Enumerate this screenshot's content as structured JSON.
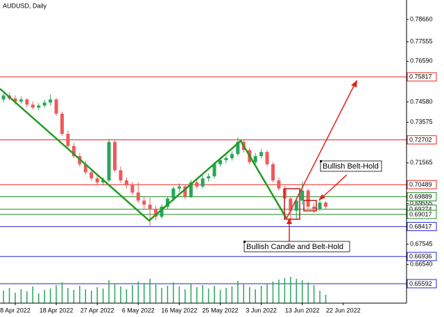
{
  "chart_data": {
    "type": "candlestick",
    "title": "AUDUSD, Daily",
    "up_color": "#26a65b",
    "down_color": "#ef5a5a",
    "ohlc": [
      [
        0.747,
        0.75,
        0.7455,
        0.749
      ],
      [
        0.749,
        0.7505,
        0.7465,
        0.7475
      ],
      [
        0.7475,
        0.749,
        0.7445,
        0.746
      ],
      [
        0.746,
        0.7485,
        0.745,
        0.747
      ],
      [
        0.747,
        0.7478,
        0.743,
        0.7445
      ],
      [
        0.7445,
        0.746,
        0.742,
        0.743
      ],
      [
        0.743,
        0.7452,
        0.7418,
        0.744
      ],
      [
        0.744,
        0.7468,
        0.7428,
        0.7455
      ],
      [
        0.7455,
        0.7495,
        0.744,
        0.747
      ],
      [
        0.747,
        0.7478,
        0.739,
        0.74
      ],
      [
        0.74,
        0.741,
        0.729,
        0.73
      ],
      [
        0.73,
        0.7318,
        0.7228,
        0.724
      ],
      [
        0.724,
        0.7255,
        0.7178,
        0.719
      ],
      [
        0.719,
        0.7205,
        0.7138,
        0.715
      ],
      [
        0.715,
        0.7168,
        0.7098,
        0.711
      ],
      [
        0.711,
        0.7125,
        0.7068,
        0.708
      ],
      [
        0.708,
        0.7098,
        0.7048,
        0.706
      ],
      [
        0.706,
        0.7085,
        0.7045,
        0.707
      ],
      [
        0.707,
        0.7275,
        0.7062,
        0.726
      ],
      [
        0.726,
        0.727,
        0.711,
        0.712
      ],
      [
        0.712,
        0.7138,
        0.7058,
        0.707
      ],
      [
        0.707,
        0.7085,
        0.703,
        0.705
      ],
      [
        0.705,
        0.7062,
        0.6995,
        0.701
      ],
      [
        0.701,
        0.706,
        0.6958,
        0.697
      ],
      [
        0.697,
        0.699,
        0.693,
        0.695
      ],
      [
        0.695,
        0.6985,
        0.6845,
        0.693
      ],
      [
        0.693,
        0.6945,
        0.6872,
        0.689
      ],
      [
        0.689,
        0.6952,
        0.688,
        0.694
      ],
      [
        0.694,
        0.699,
        0.6925,
        0.698
      ],
      [
        0.698,
        0.704,
        0.6968,
        0.703
      ],
      [
        0.703,
        0.7055,
        0.701,
        0.704
      ],
      [
        0.704,
        0.705,
        0.6978,
        0.699
      ],
      [
        0.699,
        0.7072,
        0.6982,
        0.706
      ],
      [
        0.706,
        0.7082,
        0.7028,
        0.704
      ],
      [
        0.704,
        0.7095,
        0.703,
        0.708
      ],
      [
        0.708,
        0.7105,
        0.7065,
        0.709
      ],
      [
        0.709,
        0.7162,
        0.708,
        0.715
      ],
      [
        0.715,
        0.7185,
        0.7138,
        0.717
      ],
      [
        0.717,
        0.7195,
        0.7155,
        0.718
      ],
      [
        0.718,
        0.7215,
        0.7168,
        0.72
      ],
      [
        0.72,
        0.7283,
        0.719,
        0.726
      ],
      [
        0.726,
        0.727,
        0.7208,
        0.722
      ],
      [
        0.722,
        0.7232,
        0.7148,
        0.716
      ],
      [
        0.716,
        0.7205,
        0.715,
        0.719
      ],
      [
        0.719,
        0.7225,
        0.7178,
        0.721
      ],
      [
        0.721,
        0.722,
        0.714,
        0.715
      ],
      [
        0.715,
        0.716,
        0.706,
        0.707
      ],
      [
        0.707,
        0.7085,
        0.702,
        0.703
      ],
      [
        0.703,
        0.7042,
        0.6968,
        0.698
      ],
      [
        0.698,
        0.699,
        0.686,
        0.692
      ],
      [
        0.692,
        0.6985,
        0.6875,
        0.697
      ],
      [
        0.697,
        0.7065,
        0.695,
        0.702
      ],
      [
        0.702,
        0.703,
        0.693,
        0.694
      ],
      [
        0.694,
        0.6958,
        0.691,
        0.693
      ],
      [
        0.693,
        0.698,
        0.6918,
        0.696
      ],
      [
        0.696,
        0.6968,
        0.6925,
        0.694
      ]
    ],
    "volumes": [
      18,
      22,
      15,
      20,
      17,
      24,
      14,
      19,
      21,
      26,
      30,
      22,
      19,
      25,
      20,
      18,
      23,
      21,
      33,
      28,
      24,
      20,
      26,
      31,
      29,
      35,
      27,
      22,
      25,
      30,
      24,
      20,
      28,
      23,
      26,
      21,
      25,
      19,
      22,
      24,
      32,
      27,
      23,
      20,
      25,
      28,
      31,
      34,
      36,
      38,
      35,
      33,
      30,
      26,
      18,
      12
    ],
    "volume_lim": [
      0,
      100
    ],
    "xlim": [
      -0.6,
      68.8
    ],
    "ylim": [
      0.6463,
      0.7962
    ],
    "xticks": [
      {
        "value": 2,
        "label": "8 Apr 2022"
      },
      {
        "value": 9,
        "label": "18 Apr 2022"
      },
      {
        "value": 16,
        "label": "27 Apr 2022"
      },
      {
        "value": 23,
        "label": "6 May 2022"
      },
      {
        "value": 30,
        "label": "16 May 2022"
      },
      {
        "value": 37,
        "label": "25 May 2022"
      },
      {
        "value": 44,
        "label": "3 Jun 2022"
      },
      {
        "value": 51,
        "label": "13 Jun 2022"
      },
      {
        "value": 58,
        "label": "22 Jun 2022"
      }
    ],
    "yticks": [
      {
        "value": 0.7866,
        "label": "0.78660"
      },
      {
        "value": 0.77555,
        "label": "0.77555"
      },
      {
        "value": 0.7659,
        "label": "0.76590"
      },
      {
        "value": 0.7458,
        "label": "0.74580"
      },
      {
        "value": 0.73575,
        "label": "0.73575"
      },
      {
        "value": 0.71565,
        "label": "0.71565"
      },
      {
        "value": 0.69555,
        "label": "0.69555"
      },
      {
        "value": 0.67545,
        "label": "0.67545"
      },
      {
        "value": 0.6654,
        "label": "0.66540"
      }
    ],
    "levels": [
      {
        "value": 0.75817,
        "color": "#e8201c"
      },
      {
        "value": 0.72702,
        "color": "#e8201c"
      },
      {
        "value": 0.70489,
        "color": "#e8201c"
      },
      {
        "value": 0.69889,
        "color": "#1f8a1f"
      },
      {
        "value": 0.69274,
        "color": "#1f8a1f"
      },
      {
        "value": 0.69017,
        "color": "#1f8a1f"
      },
      {
        "value": 0.68417,
        "color": "#2222e0"
      },
      {
        "value": 0.66936,
        "color": "#2222e0"
      },
      {
        "value": 0.65592,
        "color": "#2222e0"
      }
    ],
    "annotations": [
      "Bullish Belt-Hold",
      "Bullish Candle and Belt-Hold"
    ]
  }
}
